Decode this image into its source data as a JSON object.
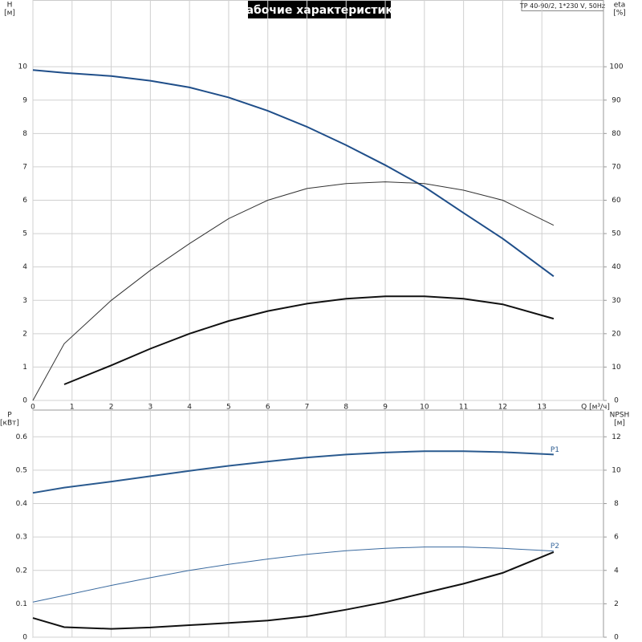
{
  "chart_data": [
    {
      "type": "line",
      "title": "Рабочие характеристики",
      "subtitle": "TP 40-90/2, 1*230 V, 50Hz",
      "ylabel": "H",
      "yunit": "[м]",
      "y2label": "eta",
      "y2unit": "[%]",
      "xlabel": "Q [м³/ч]",
      "xlim": [
        0,
        14
      ],
      "xticks": [
        0,
        1,
        2,
        3,
        4,
        5,
        6,
        7,
        8,
        9,
        10,
        11,
        12,
        13
      ],
      "xtick_labels": true,
      "ylim": [
        0,
        12
      ],
      "yticks": [
        0,
        1,
        2,
        3,
        4,
        5,
        6,
        7,
        8,
        9,
        10
      ],
      "y2lim": [
        0,
        120
      ],
      "y2ticks": [
        0,
        10,
        20,
        30,
        40,
        50,
        60,
        70,
        80,
        90,
        100
      ],
      "grid": true,
      "x": [
        0,
        0.8,
        2,
        3,
        4,
        5,
        6,
        7,
        8,
        9,
        10,
        11,
        12,
        13.3
      ],
      "series": [
        {
          "color": "#1f4e89",
          "line_width": 2,
          "values": [
            9.9,
            9.82,
            9.72,
            9.58,
            9.38,
            9.08,
            8.68,
            8.2,
            7.65,
            7.05,
            6.4,
            5.62,
            4.85,
            3.72
          ]
        },
        {
          "color": "#333333",
          "line_width": 1,
          "axis": "y2",
          "values": [
            0,
            17,
            30,
            39,
            47,
            54.5,
            60,
            63.5,
            65,
            65.5,
            65,
            63,
            60,
            52.5
          ]
        },
        {
          "color": "#111111",
          "line_width": 2,
          "axis": "y2",
          "values": [
            null,
            4.8,
            10.5,
            15.5,
            20,
            23.8,
            26.8,
            29,
            30.5,
            31.2,
            31.2,
            30.5,
            28.8,
            24.5
          ]
        }
      ]
    },
    {
      "type": "line",
      "ylabel": "P",
      "yunit": "[кВт]",
      "y2label": "NPSH",
      "y2unit": "[м]",
      "xlim": [
        0,
        14
      ],
      "xticks": [
        0,
        1,
        2,
        3,
        4,
        5,
        6,
        7,
        8,
        9,
        10,
        11,
        12,
        13
      ],
      "xtick_labels": false,
      "ylim": [
        0,
        0.68
      ],
      "yticks": [
        0,
        0.1,
        0.2,
        0.3,
        0.4,
        0.5,
        0.6
      ],
      "y2lim": [
        0,
        13.6
      ],
      "y2ticks": [
        0,
        2,
        4,
        6,
        8,
        10,
        12
      ],
      "grid": true,
      "x": [
        0,
        0.8,
        2,
        3,
        4,
        5,
        6,
        7,
        8,
        9,
        10,
        11,
        12,
        13.3
      ],
      "series": [
        {
          "name": "P1",
          "color": "#2a5a8f",
          "line_width": 2,
          "values": [
            0.432,
            0.448,
            0.466,
            0.482,
            0.498,
            0.513,
            0.526,
            0.538,
            0.547,
            0.553,
            0.557,
            0.557,
            0.554,
            0.547
          ]
        },
        {
          "name": "P2",
          "color": "#3a6a9f",
          "line_width": 1,
          "values": [
            0.105,
            0.125,
            0.155,
            0.178,
            0.2,
            0.218,
            0.234,
            0.248,
            0.259,
            0.266,
            0.27,
            0.27,
            0.266,
            0.258
          ]
        },
        {
          "color": "#111111",
          "line_width": 2,
          "axis": "y2",
          "values": [
            1.15,
            0.6,
            0.5,
            0.58,
            0.72,
            0.85,
            1.0,
            1.25,
            1.65,
            2.1,
            2.65,
            3.2,
            3.85,
            5.1
          ]
        }
      ]
    }
  ]
}
